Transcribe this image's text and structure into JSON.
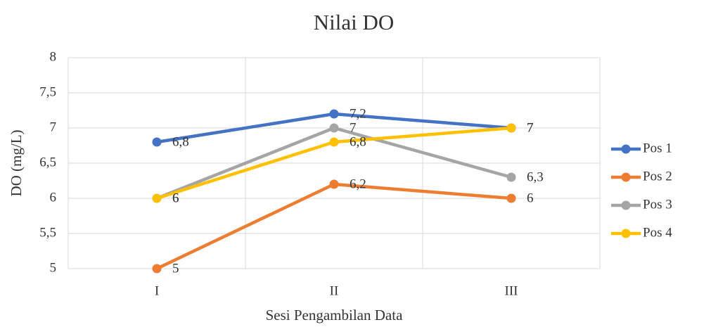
{
  "chart_data": {
    "type": "line",
    "title": "Nilai DO",
    "x_label": "Sesi Pengambilan Data",
    "y_label": "DO (mg/L)",
    "categories": [
      "I",
      "II",
      "III"
    ],
    "series": [
      {
        "name": "Pos 1",
        "color": "#4472c4",
        "values": [
          6.8,
          7.2,
          7
        ],
        "value_labels": [
          "6,8",
          "7,2",
          "7"
        ]
      },
      {
        "name": "Pos 2",
        "color": "#ed7d31",
        "values": [
          5,
          6.2,
          6
        ],
        "value_labels": [
          "5",
          "6,2",
          "6"
        ]
      },
      {
        "name": "Pos 3",
        "color": "#a5a5a5",
        "values": [
          6,
          7,
          6.3
        ],
        "value_labels": [
          "6",
          "7",
          "6,3"
        ]
      },
      {
        "name": "Pos 4",
        "color": "#ffc000",
        "values": [
          6,
          6.8,
          7
        ],
        "value_labels": [
          "6",
          "6,8",
          "7"
        ]
      }
    ],
    "ylim": [
      5,
      8
    ],
    "yticks": [
      5,
      {
        "value": 5.5,
        "label": "5,5"
      },
      6,
      {
        "value": 6.5,
        "label": "6,5"
      },
      7,
      {
        "value": 7.5,
        "label": "7,5"
      },
      8
    ],
    "grid": true,
    "legend": "right"
  }
}
